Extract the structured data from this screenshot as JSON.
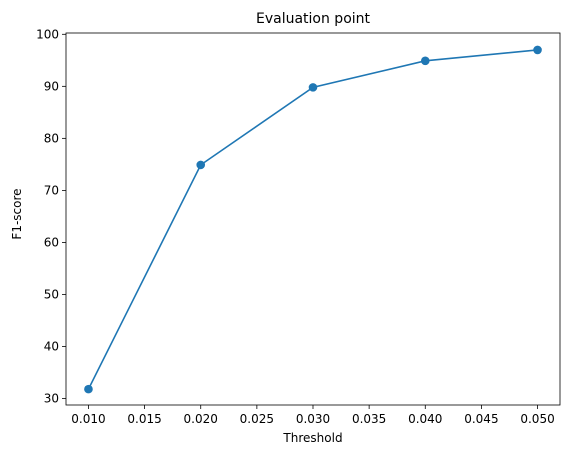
{
  "chart_data": {
    "type": "line",
    "title": "Evaluation point",
    "xlabel": "Threshold",
    "ylabel": "F1-score",
    "xlim": [
      0.008,
      0.052
    ],
    "ylim": [
      28.75,
      100.25
    ],
    "xticks": [
      0.01,
      0.015,
      0.02,
      0.025,
      0.03,
      0.035,
      0.04,
      0.045,
      0.05
    ],
    "xtick_labels": [
      "0.010",
      "0.015",
      "0.020",
      "0.025",
      "0.030",
      "0.035",
      "0.040",
      "0.045",
      "0.050"
    ],
    "yticks": [
      30,
      40,
      50,
      60,
      70,
      80,
      90,
      100
    ],
    "ytick_labels": [
      "30",
      "40",
      "50",
      "60",
      "70",
      "80",
      "90",
      "100"
    ],
    "grid": false,
    "legend": "none",
    "color": "#1f77b4",
    "marker": "circle",
    "series": [
      {
        "x": [
          0.01,
          0.02,
          0.03,
          0.04,
          0.05
        ],
        "values": [
          31.8,
          74.9,
          89.8,
          94.9,
          97.0
        ]
      }
    ]
  }
}
